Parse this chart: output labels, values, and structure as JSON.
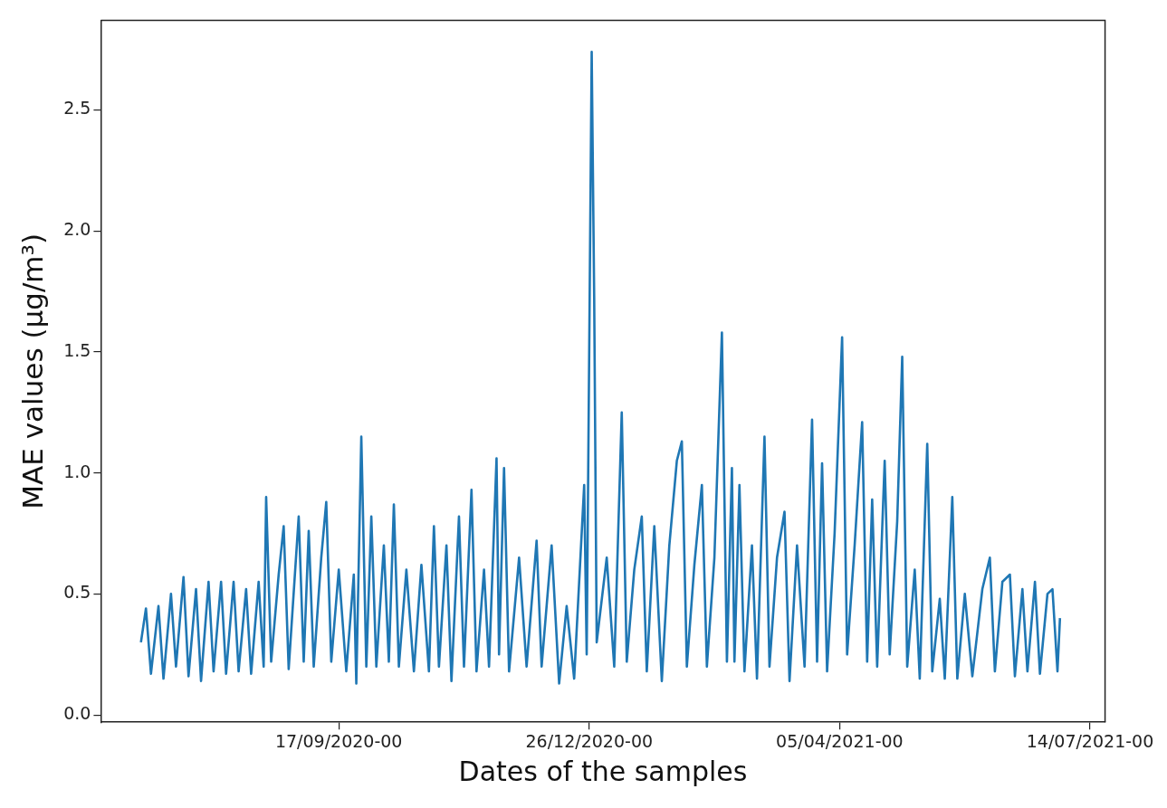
{
  "chart_data": {
    "type": "line",
    "xlabel": "Dates of the samples",
    "ylabel": "MAE values (µg/m³)",
    "xlim": [
      "2020-06-14",
      "2021-07-20"
    ],
    "ylim": [
      -0.03,
      2.87
    ],
    "xticks": [
      {
        "value": "2020-09-17",
        "label": "17/09/2020-00"
      },
      {
        "value": "2020-12-26",
        "label": "26/12/2020-00"
      },
      {
        "value": "2021-04-05",
        "label": "05/04/2021-00"
      },
      {
        "value": "2021-07-14",
        "label": "14/07/2021-00"
      }
    ],
    "yticks": [
      {
        "value": 0,
        "label": "0.0"
      },
      0.5,
      {
        "value": 1,
        "label": "1.0"
      },
      1.5,
      {
        "value": 2,
        "label": "2.0"
      },
      2.5
    ],
    "grid": false,
    "legend": false,
    "marker": "none",
    "line_style": "solid",
    "series": [
      {
        "color": "#1f77b4",
        "x": [
          "2020-06-30",
          "2020-07-02",
          "2020-07-04",
          "2020-07-07",
          "2020-07-09",
          "2020-07-12",
          "2020-07-14",
          "2020-07-17",
          "2020-07-19",
          "2020-07-22",
          "2020-07-24",
          "2020-07-27",
          "2020-07-29",
          "2020-08-01",
          "2020-08-03",
          "2020-08-06",
          "2020-08-08",
          "2020-08-11",
          "2020-08-13",
          "2020-08-16",
          "2020-08-18",
          "2020-08-19",
          "2020-08-21",
          "2020-08-24",
          "2020-08-26",
          "2020-08-28",
          "2020-09-01",
          "2020-09-03",
          "2020-09-05",
          "2020-09-07",
          "2020-09-10",
          "2020-09-12",
          "2020-09-14",
          "2020-09-17",
          "2020-09-20",
          "2020-09-23",
          "2020-09-24",
          "2020-09-26",
          "2020-09-28",
          "2020-09-30",
          "2020-10-02",
          "2020-10-05",
          "2020-10-07",
          "2020-10-09",
          "2020-10-11",
          "2020-10-14",
          "2020-10-17",
          "2020-10-20",
          "2020-10-23",
          "2020-10-25",
          "2020-10-27",
          "2020-10-30",
          "2020-11-01",
          "2020-11-04",
          "2020-11-06",
          "2020-11-09",
          "2020-11-11",
          "2020-11-14",
          "2020-11-16",
          "2020-11-19",
          "2020-11-20",
          "2020-11-22",
          "2020-11-24",
          "2020-11-28",
          "2020-12-01",
          "2020-12-05",
          "2020-12-07",
          "2020-12-11",
          "2020-12-14",
          "2020-12-17",
          "2020-12-20",
          "2020-12-24",
          "2020-12-25",
          "2020-12-27",
          "2020-12-28",
          "2020-12-29",
          "2021-01-02",
          "2021-01-05",
          "2021-01-08",
          "2021-01-10",
          "2021-01-13",
          "2021-01-16",
          "2021-01-18",
          "2021-01-21",
          "2021-01-24",
          "2021-01-27",
          "2021-01-30",
          "2021-02-01",
          "2021-02-03",
          "2021-02-06",
          "2021-02-09",
          "2021-02-11",
          "2021-02-14",
          "2021-02-17",
          "2021-02-19",
          "2021-02-21",
          "2021-02-22",
          "2021-02-24",
          "2021-02-26",
          "2021-03-01",
          "2021-03-03",
          "2021-03-06",
          "2021-03-08",
          "2021-03-11",
          "2021-03-14",
          "2021-03-16",
          "2021-03-19",
          "2021-03-22",
          "2021-03-25",
          "2021-03-27",
          "2021-03-29",
          "2021-03-31",
          "2021-04-03",
          "2021-04-06",
          "2021-04-08",
          "2021-04-11",
          "2021-04-14",
          "2021-04-16",
          "2021-04-18",
          "2021-04-20",
          "2021-04-23",
          "2021-04-25",
          "2021-04-28",
          "2021-04-30",
          "2021-05-02",
          "2021-05-05",
          "2021-05-07",
          "2021-05-10",
          "2021-05-12",
          "2021-05-15",
          "2021-05-17",
          "2021-05-20",
          "2021-05-22",
          "2021-05-25",
          "2021-05-28",
          "2021-06-01",
          "2021-06-04",
          "2021-06-06",
          "2021-06-09",
          "2021-06-12",
          "2021-06-14",
          "2021-06-17",
          "2021-06-19",
          "2021-06-22",
          "2021-06-24",
          "2021-06-27",
          "2021-06-29",
          "2021-07-01",
          "2021-07-02"
        ],
        "values": [
          0.3,
          0.44,
          0.17,
          0.45,
          0.15,
          0.5,
          0.2,
          0.57,
          0.16,
          0.52,
          0.14,
          0.55,
          0.18,
          0.55,
          0.17,
          0.55,
          0.18,
          0.52,
          0.17,
          0.55,
          0.2,
          0.9,
          0.22,
          0.58,
          0.78,
          0.19,
          0.82,
          0.22,
          0.76,
          0.2,
          0.65,
          0.88,
          0.22,
          0.6,
          0.18,
          0.58,
          0.13,
          1.15,
          0.2,
          0.82,
          0.2,
          0.7,
          0.22,
          0.87,
          0.2,
          0.6,
          0.18,
          0.62,
          0.18,
          0.78,
          0.2,
          0.7,
          0.14,
          0.82,
          0.2,
          0.93,
          0.18,
          0.6,
          0.2,
          1.06,
          0.25,
          1.02,
          0.18,
          0.65,
          0.2,
          0.72,
          0.2,
          0.7,
          0.13,
          0.45,
          0.15,
          0.95,
          0.25,
          2.74,
          1.72,
          0.3,
          0.65,
          0.2,
          1.25,
          0.22,
          0.6,
          0.82,
          0.18,
          0.78,
          0.14,
          0.7,
          1.05,
          1.13,
          0.2,
          0.62,
          0.95,
          0.2,
          0.65,
          1.58,
          0.22,
          1.02,
          0.22,
          0.95,
          0.18,
          0.7,
          0.15,
          1.15,
          0.2,
          0.65,
          0.84,
          0.14,
          0.7,
          0.2,
          1.22,
          0.22,
          1.04,
          0.18,
          0.75,
          1.56,
          0.25,
          0.7,
          1.21,
          0.22,
          0.89,
          0.2,
          1.05,
          0.25,
          0.8,
          1.48,
          0.2,
          0.6,
          0.15,
          1.12,
          0.18,
          0.48,
          0.15,
          0.9,
          0.15,
          0.5,
          0.16,
          0.52,
          0.65,
          0.18,
          0.55,
          0.58,
          0.16,
          0.52,
          0.18,
          0.55,
          0.17,
          0.5,
          0.52,
          0.18,
          0.4
        ]
      }
    ]
  }
}
